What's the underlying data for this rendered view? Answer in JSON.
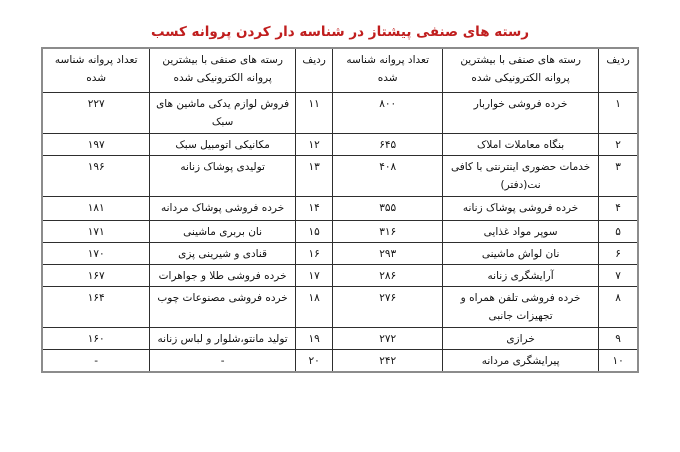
{
  "title": {
    "text": "رسته های صنفی پیشتاز در شناسه دار کردن پروانه کسب",
    "color": "#c01e1e"
  },
  "colors": {
    "inner_border": "#2e2e2e",
    "outer_border": "#8c8c8c",
    "text": "#111111"
  },
  "table": {
    "headers": {
      "radif": "ردیف",
      "category": "رسته های صنفی با بیشترین پروانه الکترونیکی شده",
      "count": "تعداد پروانه شناسه شده"
    },
    "rows": [
      {
        "radif_r": "۱",
        "category_r": "خرده فروشی خواربار",
        "count_r": "۸۰۰",
        "radif_l": "۱۱",
        "category_l": "فروش لوازم یدکی ماشین های سبک",
        "count_l": "۲۲۷"
      },
      {
        "radif_r": "۲",
        "category_r": "بنگاه معاملات املاک",
        "count_r": "۶۴۵",
        "radif_l": "۱۲",
        "category_l": "مکانیکی اتومبیل سبک",
        "count_l": "۱۹۷"
      },
      {
        "radif_r": "۳",
        "category_r": "خدمات حضوری اینترنتی با کافی نت(دفتر)",
        "count_r": "۴۰۸",
        "radif_l": "۱۳",
        "category_l": "تولیدی پوشاک زنانه",
        "count_l": "۱۹۶"
      },
      {
        "radif_r": "۴",
        "category_r": "خرده فروشی پوشاک زنانه",
        "count_r": "۳۵۵",
        "radif_l": "۱۴",
        "category_l": "خرده فروشی پوشاک مردانه",
        "count_l": "۱۸۱"
      },
      {
        "radif_r": "۵",
        "category_r": "سوپر مواد غذایی",
        "count_r": "۳۱۶",
        "radif_l": "۱۵",
        "category_l": "نان بربری ماشینی",
        "count_l": "۱۷۱"
      },
      {
        "radif_r": "۶",
        "category_r": "نان لواش ماشینی",
        "count_r": "۲۹۳",
        "radif_l": "۱۶",
        "category_l": "قنادی و شیرینی پزی",
        "count_l": "۱۷۰"
      },
      {
        "radif_r": "۷",
        "category_r": "آرایشگری زنانه",
        "count_r": "۲۸۶",
        "radif_l": "۱۷",
        "category_l": "خرده فروشی طلا و جواهرات",
        "count_l": "۱۶۷"
      },
      {
        "radif_r": "۸",
        "category_r": "خرده فروشی تلفن همراه و تجهیزات جانبی",
        "count_r": "۲۷۶",
        "radif_l": "۱۸",
        "category_l": "خرده فروشی مصنوعات چوب",
        "count_l": "۱۶۴"
      },
      {
        "radif_r": "۹",
        "category_r": "خرازی",
        "count_r": "۲۷۲",
        "radif_l": "۱۹",
        "category_l": "تولید مانتو،شلوار و لباس زنانه",
        "count_l": "۱۶۰"
      },
      {
        "radif_r": "۱۰",
        "category_r": "پیرایشگری مردانه",
        "count_r": "۲۴۲",
        "radif_l": "۲۰",
        "category_l": "-",
        "count_l": "-"
      }
    ]
  }
}
